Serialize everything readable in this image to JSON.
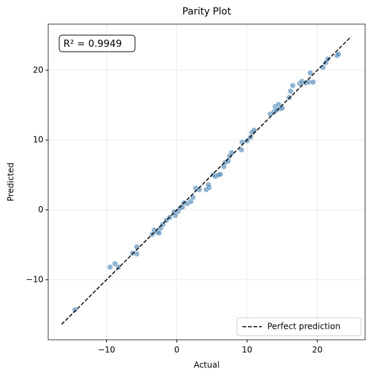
{
  "chart_data": {
    "type": "scatter",
    "title": "Parity Plot",
    "x_label": "Actual",
    "y_label": "Predicted",
    "annotation": "R² = 0.9949",
    "xlim": [
      -18.3,
      26.8
    ],
    "ylim": [
      -18.6,
      26.6
    ],
    "xticks": [
      {
        "value": -10,
        "label": "−10"
      },
      0,
      10,
      20
    ],
    "yticks": [
      {
        "value": -10,
        "label": "−10"
      },
      0,
      10,
      20
    ],
    "grid": true,
    "legend": "lower right",
    "series": [
      {
        "color": "#4682b4",
        "x": [
          -14.5,
          -9.5,
          -8.8,
          -8.3,
          -6.3,
          -5.7,
          -5.7,
          -3.5,
          -3.2,
          -2.8,
          -2.5,
          -2.3,
          -2.0,
          -1.5,
          -1.0,
          -0.4,
          -0.2,
          0.2,
          0.5,
          0.8,
          1.0,
          1.5,
          2.0,
          2.3,
          2.7,
          3.2,
          4.2,
          4.6,
          4.5,
          5.2,
          5.5,
          5.9,
          6.2,
          6.7,
          6.9,
          7.3,
          7.5,
          7.8,
          9.2,
          9.3,
          10.0,
          10.5,
          10.7,
          11.0,
          13.3,
          13.8,
          14.0,
          14.2,
          14.5,
          14.7,
          15.0,
          16.0,
          16.2,
          16.5,
          17.5,
          17.8,
          18.3,
          18.8,
          19.0,
          19.4,
          20.8,
          21.2,
          21.5,
          22.8,
          23.0
        ],
        "values": [
          -14.3,
          -8.2,
          -7.7,
          -8.2,
          -6.2,
          -6.3,
          -5.3,
          -3.5,
          -2.9,
          -3.2,
          -3.3,
          -2.6,
          -2.1,
          -1.5,
          -1.1,
          -0.3,
          -0.8,
          -0.2,
          0.3,
          0.4,
          1.0,
          0.9,
          1.2,
          1.8,
          3.1,
          2.9,
          2.9,
          3.2,
          3.6,
          5.0,
          4.8,
          5.0,
          5.1,
          6.2,
          6.8,
          7.0,
          7.7,
          8.2,
          8.6,
          9.7,
          9.9,
          10.4,
          11.1,
          11.4,
          13.7,
          14.0,
          14.8,
          14.3,
          15.1,
          14.5,
          14.6,
          16.1,
          17.0,
          17.8,
          18.1,
          18.4,
          18.2,
          18.3,
          19.6,
          18.3,
          20.4,
          21.1,
          21.6,
          22.1,
          22.3
        ]
      },
      {
        "name": "Perfect prediction",
        "type": "line",
        "color": "#000000",
        "dashed": true,
        "x": [
          -16.4,
          24.8
        ],
        "values": [
          -16.4,
          24.8
        ]
      }
    ]
  }
}
